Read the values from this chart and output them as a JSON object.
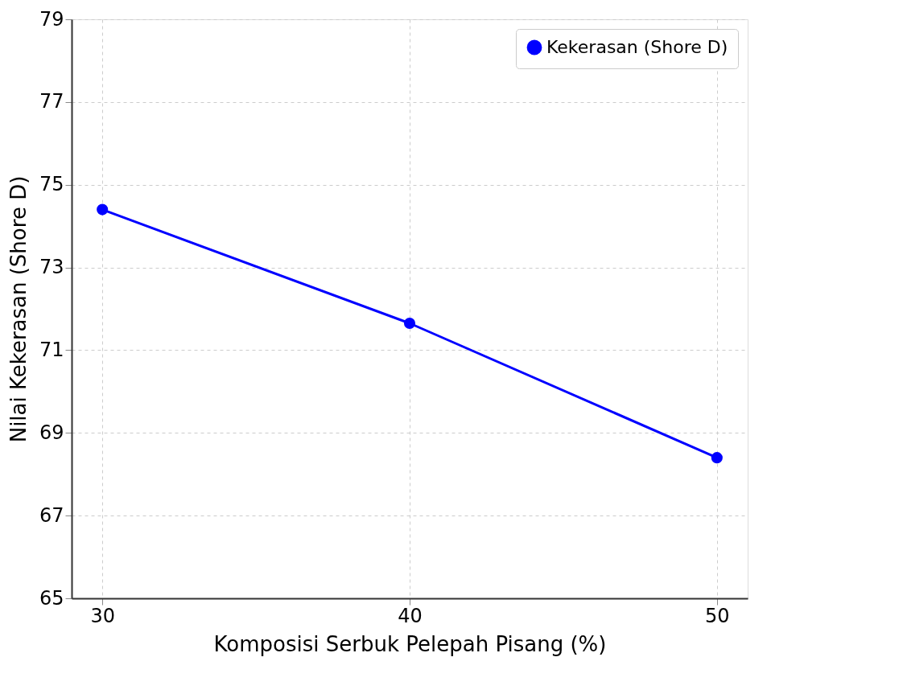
{
  "chart_data": {
    "type": "line",
    "xlabel": "Komposisi Serbuk Pelepah Pisang (%)",
    "ylabel": "Nilai Kekerasan (Shore D)",
    "x": [
      30,
      40,
      50
    ],
    "series": [
      {
        "name": "Kekerasan (Shore D)",
        "color": "#0000ff",
        "values": [
          74.4,
          71.65,
          68.4
        ]
      }
    ],
    "xlim": [
      29,
      51
    ],
    "xticks": [
      30,
      40,
      50
    ],
    "ylim": [
      65,
      79
    ],
    "yticks": [
      65,
      67,
      69,
      71,
      73,
      75,
      77,
      79
    ],
    "grid": true,
    "legend": "top right",
    "marker": "circle",
    "line_style": "solid"
  }
}
